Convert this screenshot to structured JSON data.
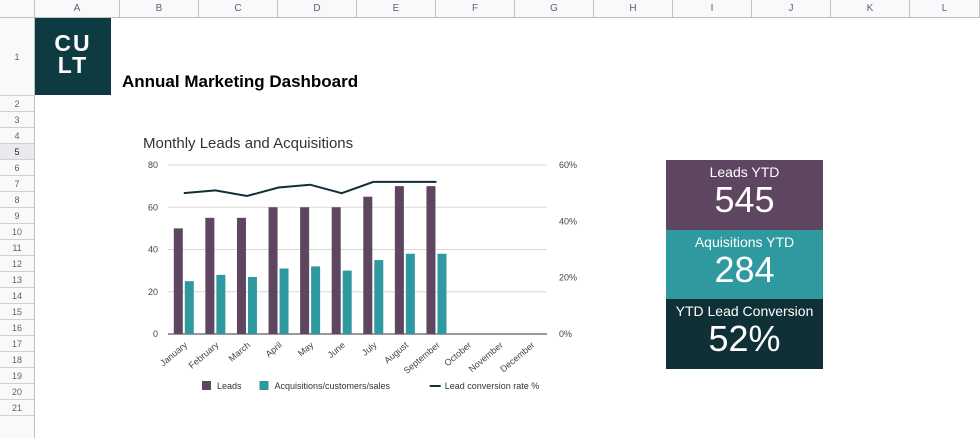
{
  "columns": [
    "A",
    "B",
    "C",
    "D",
    "E",
    "F",
    "G",
    "H",
    "I",
    "J",
    "K",
    "L"
  ],
  "rows": [
    "1",
    "2",
    "3",
    "4",
    "5",
    "6",
    "7",
    "8",
    "9",
    "10",
    "11",
    "12",
    "13",
    "14",
    "15",
    "16",
    "17",
    "18",
    "19",
    "20",
    "21"
  ],
  "selected_row": "5",
  "logo": {
    "line1": "CU",
    "line2": "LT"
  },
  "title": "Annual Marketing Dashboard",
  "kpis": [
    {
      "label": "Leads YTD",
      "value": "545",
      "color": "#5e4560"
    },
    {
      "label": "Aquisitions YTD",
      "value": "284",
      "color": "#2e9aa0"
    },
    {
      "label": "YTD Lead Conversion",
      "value": "52%",
      "color": "#0e3036"
    }
  ],
  "chart_data": {
    "type": "bar",
    "title": "Monthly Leads and Acquisitions",
    "categories": [
      "January",
      "February",
      "March",
      "April",
      "May",
      "June",
      "July",
      "August",
      "September",
      "October",
      "November",
      "December"
    ],
    "series": [
      {
        "name": "Leads",
        "type": "bar",
        "color": "#5e4560",
        "values": [
          50,
          55,
          55,
          60,
          60,
          60,
          65,
          70,
          70,
          null,
          null,
          null
        ]
      },
      {
        "name": "Acquisitions/customers/sales",
        "type": "bar",
        "color": "#2e9aa0",
        "values": [
          25,
          28,
          27,
          31,
          32,
          30,
          35,
          38,
          38,
          null,
          null,
          null
        ]
      },
      {
        "name": "Lead conversion rate %",
        "type": "line",
        "axis": "right",
        "color": "#0e3036",
        "values": [
          50,
          51,
          49,
          52,
          53,
          50,
          54,
          54,
          54,
          null,
          null,
          null
        ]
      }
    ],
    "y_left": {
      "ticks": [
        "0",
        "20",
        "40",
        "60",
        "80"
      ],
      "min": 0,
      "max": 80
    },
    "y_right": {
      "ticks": [
        "0%",
        "20%",
        "40%",
        "60%"
      ],
      "min": 0,
      "max": 60
    },
    "grid": true,
    "legend_position": "bottom"
  }
}
